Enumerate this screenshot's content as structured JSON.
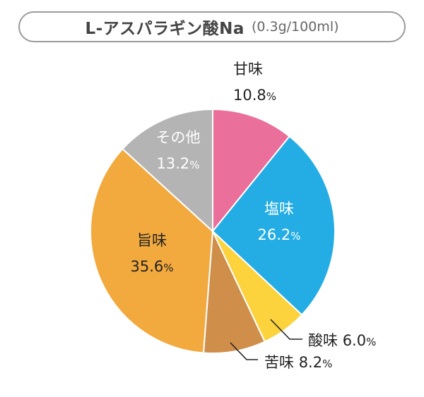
{
  "title": {
    "main": "L-アスパラギン酸Na",
    "sub": "(0.3g/100ml)"
  },
  "chart_data": {
    "type": "pie",
    "title": "L-アスパラギン酸Na (0.3g/100ml)",
    "start": "12 o'clock",
    "direction": "clockwise",
    "percent_sign": "%",
    "slices": [
      {
        "name": "甘味",
        "value": 10.8,
        "label": "10.8",
        "color": "#ea709b",
        "text_color": "#222222"
      },
      {
        "name": "塩味",
        "value": 26.2,
        "label": "26.2",
        "color": "#23ade4",
        "text_color": "#ffffff"
      },
      {
        "name": "酸味",
        "value": 6.0,
        "label": "6.0",
        "color": "#fcd23d",
        "text_color": "#222222"
      },
      {
        "name": "苦味",
        "value": 8.2,
        "label": "8.2",
        "color": "#cf8e4a",
        "text_color": "#222222"
      },
      {
        "name": "旨味",
        "value": 35.6,
        "label": "35.6",
        "color": "#f2a93e",
        "text_color": "#222222"
      },
      {
        "name": "その他",
        "value": 13.2,
        "label": "13.2",
        "color": "#b4b4b4",
        "text_color": "#ffffff"
      }
    ]
  }
}
